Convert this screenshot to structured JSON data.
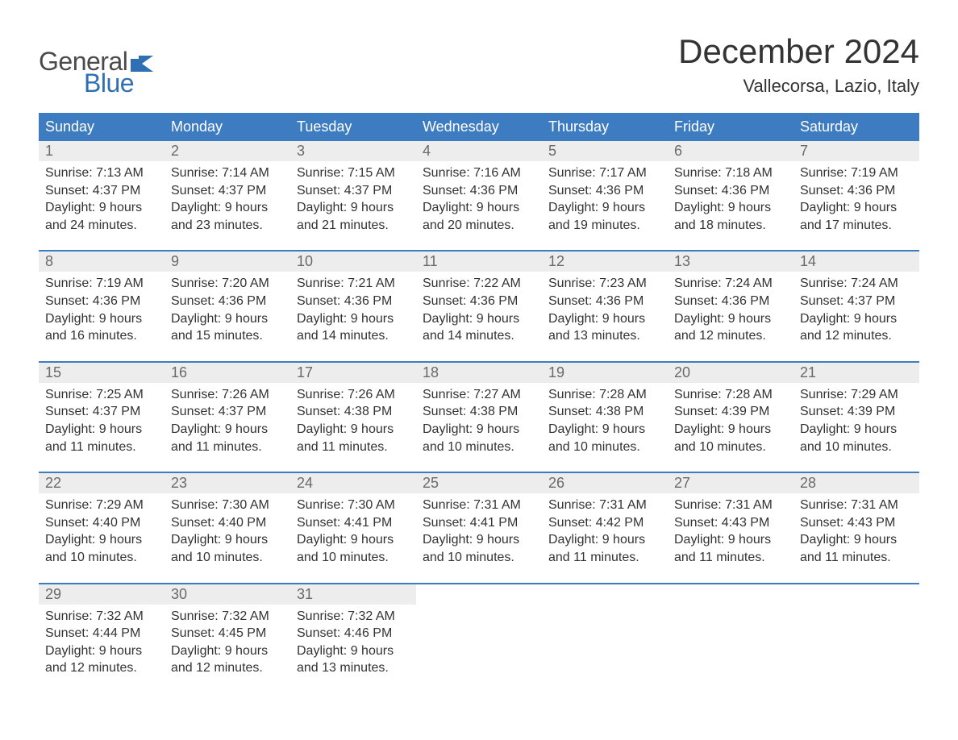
{
  "logo": {
    "general": "General",
    "blue": "Blue"
  },
  "title": "December 2024",
  "location": "Vallecorsa, Lazio, Italy",
  "colors": {
    "header_bg": "#3d7cc0",
    "header_text": "#ffffff",
    "daynum_bg": "#ededed",
    "daynum_text": "#6a6a6a",
    "body_text": "#333333",
    "logo_blue": "#2f6fb3",
    "logo_gray": "#4a4a4a",
    "week_border": "#3d7cc0"
  },
  "layout": {
    "columns": 7,
    "rows": 5,
    "title_fontsize": 42,
    "location_fontsize": 22,
    "header_fontsize": 18,
    "daynum_fontsize": 18,
    "body_fontsize": 16
  },
  "weekdays": [
    "Sunday",
    "Monday",
    "Tuesday",
    "Wednesday",
    "Thursday",
    "Friday",
    "Saturday"
  ],
  "days": [
    {
      "n": "1",
      "sunrise": "Sunrise: 7:13 AM",
      "sunset": "Sunset: 4:37 PM",
      "d1": "Daylight: 9 hours",
      "d2": "and 24 minutes."
    },
    {
      "n": "2",
      "sunrise": "Sunrise: 7:14 AM",
      "sunset": "Sunset: 4:37 PM",
      "d1": "Daylight: 9 hours",
      "d2": "and 23 minutes."
    },
    {
      "n": "3",
      "sunrise": "Sunrise: 7:15 AM",
      "sunset": "Sunset: 4:37 PM",
      "d1": "Daylight: 9 hours",
      "d2": "and 21 minutes."
    },
    {
      "n": "4",
      "sunrise": "Sunrise: 7:16 AM",
      "sunset": "Sunset: 4:36 PM",
      "d1": "Daylight: 9 hours",
      "d2": "and 20 minutes."
    },
    {
      "n": "5",
      "sunrise": "Sunrise: 7:17 AM",
      "sunset": "Sunset: 4:36 PM",
      "d1": "Daylight: 9 hours",
      "d2": "and 19 minutes."
    },
    {
      "n": "6",
      "sunrise": "Sunrise: 7:18 AM",
      "sunset": "Sunset: 4:36 PM",
      "d1": "Daylight: 9 hours",
      "d2": "and 18 minutes."
    },
    {
      "n": "7",
      "sunrise": "Sunrise: 7:19 AM",
      "sunset": "Sunset: 4:36 PM",
      "d1": "Daylight: 9 hours",
      "d2": "and 17 minutes."
    },
    {
      "n": "8",
      "sunrise": "Sunrise: 7:19 AM",
      "sunset": "Sunset: 4:36 PM",
      "d1": "Daylight: 9 hours",
      "d2": "and 16 minutes."
    },
    {
      "n": "9",
      "sunrise": "Sunrise: 7:20 AM",
      "sunset": "Sunset: 4:36 PM",
      "d1": "Daylight: 9 hours",
      "d2": "and 15 minutes."
    },
    {
      "n": "10",
      "sunrise": "Sunrise: 7:21 AM",
      "sunset": "Sunset: 4:36 PM",
      "d1": "Daylight: 9 hours",
      "d2": "and 14 minutes."
    },
    {
      "n": "11",
      "sunrise": "Sunrise: 7:22 AM",
      "sunset": "Sunset: 4:36 PM",
      "d1": "Daylight: 9 hours",
      "d2": "and 14 minutes."
    },
    {
      "n": "12",
      "sunrise": "Sunrise: 7:23 AM",
      "sunset": "Sunset: 4:36 PM",
      "d1": "Daylight: 9 hours",
      "d2": "and 13 minutes."
    },
    {
      "n": "13",
      "sunrise": "Sunrise: 7:24 AM",
      "sunset": "Sunset: 4:36 PM",
      "d1": "Daylight: 9 hours",
      "d2": "and 12 minutes."
    },
    {
      "n": "14",
      "sunrise": "Sunrise: 7:24 AM",
      "sunset": "Sunset: 4:37 PM",
      "d1": "Daylight: 9 hours",
      "d2": "and 12 minutes."
    },
    {
      "n": "15",
      "sunrise": "Sunrise: 7:25 AM",
      "sunset": "Sunset: 4:37 PM",
      "d1": "Daylight: 9 hours",
      "d2": "and 11 minutes."
    },
    {
      "n": "16",
      "sunrise": "Sunrise: 7:26 AM",
      "sunset": "Sunset: 4:37 PM",
      "d1": "Daylight: 9 hours",
      "d2": "and 11 minutes."
    },
    {
      "n": "17",
      "sunrise": "Sunrise: 7:26 AM",
      "sunset": "Sunset: 4:38 PM",
      "d1": "Daylight: 9 hours",
      "d2": "and 11 minutes."
    },
    {
      "n": "18",
      "sunrise": "Sunrise: 7:27 AM",
      "sunset": "Sunset: 4:38 PM",
      "d1": "Daylight: 9 hours",
      "d2": "and 10 minutes."
    },
    {
      "n": "19",
      "sunrise": "Sunrise: 7:28 AM",
      "sunset": "Sunset: 4:38 PM",
      "d1": "Daylight: 9 hours",
      "d2": "and 10 minutes."
    },
    {
      "n": "20",
      "sunrise": "Sunrise: 7:28 AM",
      "sunset": "Sunset: 4:39 PM",
      "d1": "Daylight: 9 hours",
      "d2": "and 10 minutes."
    },
    {
      "n": "21",
      "sunrise": "Sunrise: 7:29 AM",
      "sunset": "Sunset: 4:39 PM",
      "d1": "Daylight: 9 hours",
      "d2": "and 10 minutes."
    },
    {
      "n": "22",
      "sunrise": "Sunrise: 7:29 AM",
      "sunset": "Sunset: 4:40 PM",
      "d1": "Daylight: 9 hours",
      "d2": "and 10 minutes."
    },
    {
      "n": "23",
      "sunrise": "Sunrise: 7:30 AM",
      "sunset": "Sunset: 4:40 PM",
      "d1": "Daylight: 9 hours",
      "d2": "and 10 minutes."
    },
    {
      "n": "24",
      "sunrise": "Sunrise: 7:30 AM",
      "sunset": "Sunset: 4:41 PM",
      "d1": "Daylight: 9 hours",
      "d2": "and 10 minutes."
    },
    {
      "n": "25",
      "sunrise": "Sunrise: 7:31 AM",
      "sunset": "Sunset: 4:41 PM",
      "d1": "Daylight: 9 hours",
      "d2": "and 10 minutes."
    },
    {
      "n": "26",
      "sunrise": "Sunrise: 7:31 AM",
      "sunset": "Sunset: 4:42 PM",
      "d1": "Daylight: 9 hours",
      "d2": "and 11 minutes."
    },
    {
      "n": "27",
      "sunrise": "Sunrise: 7:31 AM",
      "sunset": "Sunset: 4:43 PM",
      "d1": "Daylight: 9 hours",
      "d2": "and 11 minutes."
    },
    {
      "n": "28",
      "sunrise": "Sunrise: 7:31 AM",
      "sunset": "Sunset: 4:43 PM",
      "d1": "Daylight: 9 hours",
      "d2": "and 11 minutes."
    },
    {
      "n": "29",
      "sunrise": "Sunrise: 7:32 AM",
      "sunset": "Sunset: 4:44 PM",
      "d1": "Daylight: 9 hours",
      "d2": "and 12 minutes."
    },
    {
      "n": "30",
      "sunrise": "Sunrise: 7:32 AM",
      "sunset": "Sunset: 4:45 PM",
      "d1": "Daylight: 9 hours",
      "d2": "and 12 minutes."
    },
    {
      "n": "31",
      "sunrise": "Sunrise: 7:32 AM",
      "sunset": "Sunset: 4:46 PM",
      "d1": "Daylight: 9 hours",
      "d2": "and 13 minutes."
    }
  ]
}
